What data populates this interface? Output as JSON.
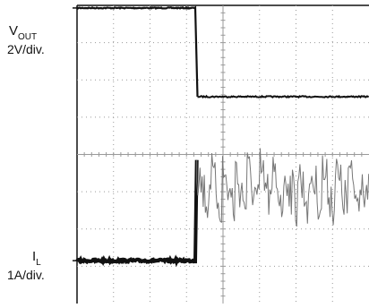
{
  "chart_data": {
    "type": "line",
    "grid": true,
    "divisions": {
      "x": 8,
      "y": 8
    },
    "series": [
      {
        "name": "VOUT",
        "label_main": "V",
        "label_sub": "OUT",
        "scale": "2V/div.",
        "color": "#111111",
        "points": [
          [
            0,
            7.93
          ],
          [
            3.25,
            7.93
          ],
          [
            3.3,
            5.55
          ],
          [
            8.0,
            5.55
          ]
        ]
      },
      {
        "name": "IL",
        "label_main": "I",
        "label_sub": "L",
        "scale": "1A/div.",
        "color": "#111111",
        "points": [
          [
            0,
            1.15
          ],
          [
            3.25,
            1.15
          ],
          [
            3.28,
            3.85
          ],
          [
            8.0,
            3.85
          ]
        ],
        "ripple_after_step_div": [
          2.35,
          3.85
        ]
      }
    ]
  }
}
